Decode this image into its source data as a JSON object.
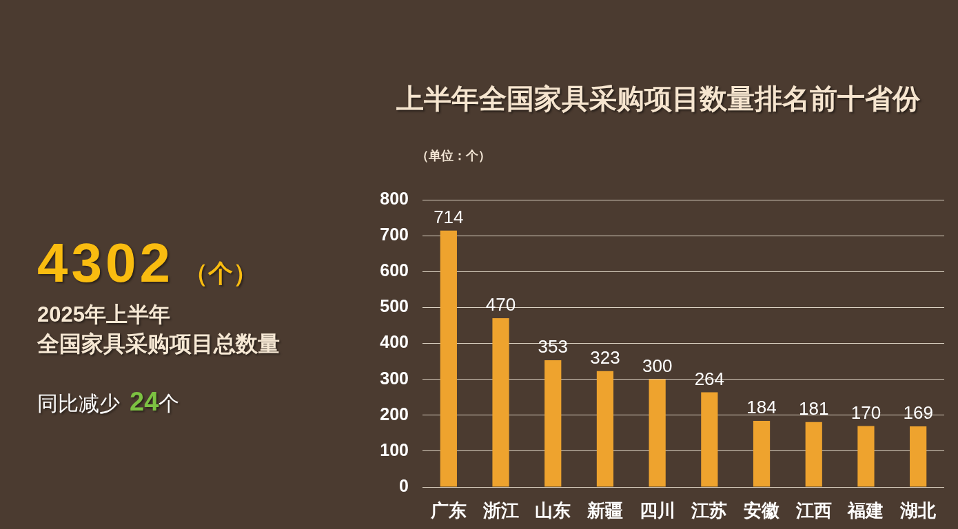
{
  "chart_data": [
    {
      "type": "other",
      "annotations": [
        "4302",
        "（个）",
        "2025年上半年",
        "全国家具采购项目总数量",
        "同比减少",
        "24",
        "个"
      ]
    },
    {
      "type": "bar",
      "title": "上半年全国家具采购项目数量排名前十省份",
      "ylabel": "（单位：个）",
      "categories": [
        "广东",
        "浙江",
        "山东",
        "新疆",
        "四川",
        "江苏",
        "安徽",
        "江西",
        "福建",
        "湖北"
      ],
      "values": [
        714,
        470,
        353,
        323,
        300,
        264,
        184,
        181,
        170,
        169
      ],
      "color": "#eea32e",
      "ylim": [
        0,
        800
      ],
      "yticks": [
        0,
        100,
        200,
        300,
        400,
        500,
        600,
        700,
        800
      ],
      "grid": "y",
      "data_labels": true
    }
  ]
}
